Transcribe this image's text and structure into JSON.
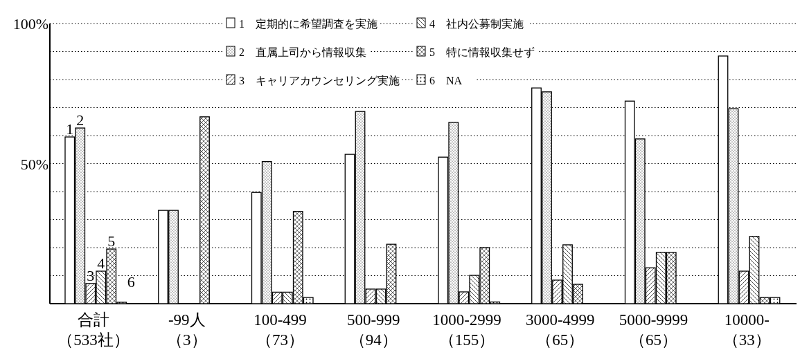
{
  "chart_data": {
    "type": "bar",
    "categories": [
      "合計（533社）",
      "-99人（3）",
      "100-499（73）",
      "500-999（94）",
      "1000-2999（155）",
      "3000-4999（65）",
      "5000-9999（65）",
      "10000-（33）"
    ],
    "series": [
      {
        "name": "1　定期的に希望調査を実施",
        "color": "#ffffff",
        "values": [
          59.5,
          33.3,
          39.7,
          53.3,
          52.3,
          77.0,
          72.3,
          88.4
        ]
      },
      {
        "name": "2　直属上司から情報収集",
        "color": "#ffffff",
        "values": [
          62.7,
          33.3,
          50.7,
          68.6,
          64.7,
          75.6,
          58.8,
          69.6
        ]
      },
      {
        "name": "3　キャリアカウンセリング実施",
        "color": "#ffffff",
        "values": [
          7.2,
          0,
          4.1,
          5.2,
          4.2,
          8.4,
          12.8,
          11.6
        ]
      },
      {
        "name": "4　社内公募制実施",
        "color": "#ffffff",
        "values": [
          11.6,
          0,
          4.1,
          5.2,
          10.1,
          21.0,
          18.3,
          24.0
        ]
      },
      {
        "name": "5　特に情報収集せず",
        "color": "#ffffff",
        "values": [
          19.5,
          66.7,
          32.9,
          21.2,
          20.0,
          6.9,
          18.3,
          2.2
        ]
      },
      {
        "name": "6　NA",
        "color": "#ffffff",
        "values": [
          0.5,
          0,
          2.2,
          0,
          0.6,
          0,
          0,
          2.2
        ]
      }
    ],
    "ylim": [
      0,
      100
    ],
    "yticks": [
      {
        "value": 0,
        "label": null
      },
      {
        "value": 10,
        "label": null
      },
      {
        "value": 20,
        "label": null
      },
      {
        "value": 30,
        "label": null
      },
      {
        "value": 40,
        "label": null
      },
      {
        "value": 50,
        "label": "50%"
      },
      {
        "value": 60,
        "label": null
      },
      {
        "value": 70,
        "label": null
      },
      {
        "value": 80,
        "label": null
      },
      {
        "value": 90,
        "label": null
      },
      {
        "value": 100,
        "label": "100%"
      }
    ],
    "grid": "y",
    "legend": "top",
    "annotations": [
      "1",
      "2",
      "3",
      "4",
      "5",
      "6"
    ]
  }
}
